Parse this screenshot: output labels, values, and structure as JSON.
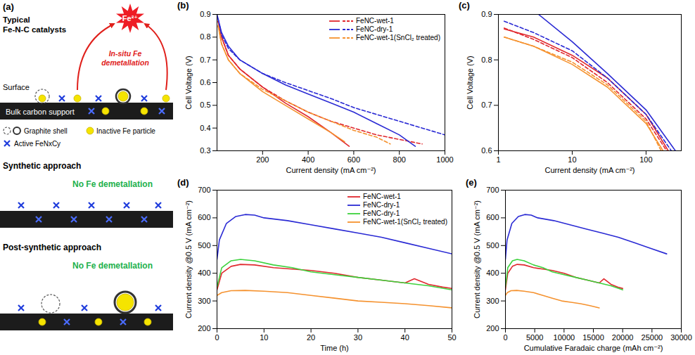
{
  "diagram": {
    "label": "(a)",
    "sections": [
      {
        "title": [
          "Typical",
          "Fe-N-C catalysts"
        ],
        "ion": "Fe²⁺",
        "arrow_label": "In-situ Fe demetallation",
        "surface_label": "Surface",
        "support_label": "Bulk carbon support",
        "key": [
          "Graphite shell",
          "Inactive Fe particle",
          "Active FeNxCy"
        ]
      },
      {
        "title": [
          "Synthetic approach"
        ],
        "note": "No Fe demetallation"
      },
      {
        "title": [
          "Post-synthetic approach"
        ],
        "note": "No Fe demetallation"
      }
    ]
  },
  "chart_data": [
    {
      "type": "line",
      "title": "(b)",
      "x_label": "Current density (mA cm⁻²)",
      "y_label": "Cell Voltage (V)",
      "xlim": [
        0,
        1000
      ],
      "xticks": [
        200,
        400,
        600,
        800,
        1000
      ],
      "ylim": [
        0.3,
        0.9
      ],
      "yticks": [
        0.3,
        0.4,
        0.5,
        0.6,
        0.7,
        0.8,
        0.9
      ],
      "grid": false,
      "legend": "top-right",
      "series": [
        {
          "name": "FeNC-wet-1",
          "color": "#e0282e",
          "line_style": "solid",
          "x": [
            5,
            20,
            50,
            100,
            200,
            300,
            400,
            500,
            580
          ],
          "values": [
            0.87,
            0.8,
            0.72,
            0.66,
            0.58,
            0.51,
            0.45,
            0.38,
            0.32
          ]
        },
        {
          "name": "FeNC-wet-1",
          "color": "#e0282e",
          "line_style": "dashed",
          "x": [
            5,
            20,
            50,
            100,
            200,
            300,
            400,
            500,
            600,
            700,
            800,
            900
          ],
          "values": [
            0.87,
            0.8,
            0.72,
            0.66,
            0.58,
            0.52,
            0.47,
            0.43,
            0.4,
            0.37,
            0.35,
            0.33
          ]
        },
        {
          "name": "FeNC-dry-1",
          "color": "#2a2ad4",
          "line_style": "solid",
          "x": [
            0,
            20,
            50,
            100,
            200,
            300,
            400,
            500,
            600,
            700,
            800,
            870
          ],
          "values": [
            0.9,
            0.82,
            0.76,
            0.7,
            0.64,
            0.59,
            0.55,
            0.51,
            0.47,
            0.42,
            0.37,
            0.32
          ]
        },
        {
          "name": "FeNC-dry-1",
          "color": "#2a2ad4",
          "line_style": "dashed",
          "x": [
            5,
            20,
            50,
            100,
            200,
            300,
            400,
            500,
            600,
            700,
            800,
            900,
            1000
          ],
          "values": [
            0.88,
            0.81,
            0.75,
            0.7,
            0.64,
            0.6,
            0.565,
            0.53,
            0.49,
            0.46,
            0.43,
            0.4,
            0.37
          ]
        },
        {
          "name": "FeNC-wet-1(SnCl₂ treated)",
          "color": "#f5922f",
          "line_style": "solid",
          "x": [
            5,
            20,
            50,
            100,
            200,
            300,
            400,
            500,
            560
          ],
          "values": [
            0.85,
            0.77,
            0.7,
            0.64,
            0.56,
            0.5,
            0.44,
            0.38,
            0.34
          ]
        },
        {
          "name": "FeNC-wet-1(SnCl₂ treated)",
          "color": "#f5922f",
          "line_style": "dashed",
          "x": [
            5,
            20,
            50,
            100,
            200,
            300,
            400,
            500,
            600,
            700,
            760
          ],
          "values": [
            0.85,
            0.77,
            0.7,
            0.64,
            0.57,
            0.52,
            0.47,
            0.43,
            0.39,
            0.36,
            0.33
          ]
        }
      ]
    },
    {
      "type": "line",
      "title": "(c)",
      "x_label": "Current density (mA cm⁻²)",
      "y_label": "Cell Voltage (V)",
      "log": "x",
      "xlim": [
        1,
        300
      ],
      "xticks": [
        1,
        10,
        100
      ],
      "ylim": [
        0.6,
        0.9
      ],
      "yticks": [
        0.6,
        0.7,
        0.8,
        0.9
      ],
      "grid": false,
      "series": [
        {
          "name": "FeNC-wet-1",
          "color": "#e0282e",
          "line_style": "solid",
          "x": [
            1.2,
            3,
            10,
            30,
            100,
            200
          ],
          "values": [
            0.868,
            0.85,
            0.81,
            0.76,
            0.68,
            0.6
          ]
        },
        {
          "name": "FeNC-wet-1",
          "color": "#e0282e",
          "line_style": "dashed",
          "x": [
            1.2,
            3,
            10,
            30,
            100,
            190
          ],
          "values": [
            0.87,
            0.845,
            0.805,
            0.75,
            0.67,
            0.6
          ]
        },
        {
          "name": "FeNC-dry-1",
          "color": "#2a2ad4",
          "line_style": "solid",
          "x": [
            3.5,
            10,
            30,
            100,
            250
          ],
          "values": [
            0.9,
            0.84,
            0.77,
            0.69,
            0.6
          ]
        },
        {
          "name": "FeNC-dry-1",
          "color": "#2a2ad4",
          "line_style": "dashed",
          "x": [
            1.2,
            3,
            10,
            30,
            100,
            220
          ],
          "values": [
            0.885,
            0.86,
            0.82,
            0.76,
            0.68,
            0.6
          ]
        },
        {
          "name": "FeNC-wet-1(SnCl₂ treated)",
          "color": "#f5922f",
          "line_style": "solid",
          "x": [
            1.2,
            3,
            10,
            30,
            100,
            170
          ],
          "values": [
            0.85,
            0.83,
            0.79,
            0.74,
            0.66,
            0.6
          ]
        },
        {
          "name": "FeNC-wet-1(SnCl₂ treated)",
          "color": "#f5922f",
          "line_style": "dashed",
          "x": [
            1.2,
            3,
            10,
            30,
            100,
            160
          ],
          "values": [
            0.85,
            0.83,
            0.795,
            0.745,
            0.665,
            0.6
          ]
        }
      ]
    },
    {
      "type": "line",
      "title": "(d)",
      "x_label": "Time (h)",
      "y_label": "Current density @0.5 V (mA cm⁻²)",
      "xlim": [
        0,
        50
      ],
      "xticks": [
        0,
        10,
        20,
        30,
        40,
        50
      ],
      "ylim": [
        200,
        700
      ],
      "yticks": [
        200,
        300,
        400,
        500,
        600,
        700
      ],
      "grid": false,
      "legend": "top-right",
      "series": [
        {
          "name": "FeNC-wet-1",
          "color": "#e0282e",
          "line_style": "solid",
          "x": [
            0,
            1,
            3,
            5,
            8,
            12,
            16,
            20,
            25,
            30,
            35,
            40,
            42,
            45,
            48,
            50
          ],
          "values": [
            340,
            400,
            425,
            432,
            430,
            420,
            415,
            410,
            400,
            385,
            375,
            365,
            380,
            360,
            350,
            345
          ]
        },
        {
          "name": "FeNC-dry-1",
          "color": "#2a2ad4",
          "line_style": "solid",
          "x": [
            0,
            0.5,
            2,
            4,
            6,
            8,
            10,
            15,
            20,
            25,
            30,
            35,
            40,
            45,
            50
          ],
          "values": [
            450,
            520,
            580,
            605,
            612,
            610,
            600,
            590,
            575,
            560,
            545,
            530,
            510,
            490,
            470
          ]
        },
        {
          "name": "FeNC-dry-1",
          "color": "#3dd23d",
          "line_style": "solid",
          "x": [
            0,
            1,
            3,
            5,
            8,
            12,
            16,
            20,
            25,
            30,
            35,
            40,
            45,
            50
          ],
          "values": [
            350,
            420,
            445,
            450,
            445,
            430,
            420,
            405,
            395,
            385,
            375,
            365,
            355,
            340
          ]
        },
        {
          "name": "FeNC-wet-1(SnCl₂ treated)",
          "color": "#f5922f",
          "line_style": "solid",
          "x": [
            0,
            1,
            3,
            6,
            10,
            15,
            20,
            25,
            30,
            35,
            40,
            45,
            50
          ],
          "values": [
            320,
            330,
            337,
            338,
            335,
            330,
            320,
            310,
            300,
            295,
            290,
            283,
            275
          ]
        }
      ]
    },
    {
      "type": "line",
      "title": "(e)",
      "x_label": "Cumulative Faradaic charge (mAh cm⁻²)",
      "y_label": "Current density @0.5 V (mA cm⁻²)",
      "xlim": [
        0,
        30000
      ],
      "xticks": [
        0,
        5000,
        10000,
        15000,
        20000,
        25000,
        30000
      ],
      "ylim": [
        200,
        700
      ],
      "yticks": [
        200,
        300,
        400,
        500,
        600,
        700
      ],
      "grid": false,
      "series": [
        {
          "name": "FeNC-wet-1",
          "color": "#e0282e",
          "line_style": "solid",
          "x": [
            0,
            400,
            1200,
            2000,
            3200,
            4800,
            6400,
            8000,
            10000,
            12000,
            14000,
            16000,
            16800,
            18000,
            19200,
            20000
          ],
          "values": [
            340,
            400,
            425,
            432,
            430,
            420,
            415,
            410,
            400,
            385,
            375,
            365,
            380,
            360,
            350,
            345
          ]
        },
        {
          "name": "FeNC-dry-1",
          "color": "#2a2ad4",
          "line_style": "solid",
          "x": [
            0,
            275,
            1100,
            2200,
            3300,
            4400,
            5500,
            8250,
            11000,
            13750,
            16500,
            19250,
            22000,
            24750,
            27500
          ],
          "values": [
            450,
            520,
            580,
            605,
            612,
            610,
            600,
            590,
            575,
            560,
            545,
            530,
            510,
            490,
            470
          ]
        },
        {
          "name": "FeNC-dry-1",
          "color": "#3dd23d",
          "line_style": "solid",
          "x": [
            0,
            400,
            1200,
            2000,
            3200,
            4800,
            6400,
            8000,
            10000,
            12000,
            14000,
            16000,
            18000,
            20000
          ],
          "values": [
            350,
            420,
            445,
            450,
            445,
            430,
            420,
            405,
            395,
            385,
            375,
            365,
            355,
            340
          ]
        },
        {
          "name": "FeNC-wet-1(SnCl₂ treated)",
          "color": "#f5922f",
          "line_style": "solid",
          "x": [
            0,
            320,
            960,
            1920,
            3200,
            4800,
            6400,
            8000,
            9600,
            11200,
            12800,
            14400,
            16000
          ],
          "values": [
            320,
            330,
            337,
            338,
            335,
            330,
            320,
            310,
            300,
            295,
            290,
            283,
            275
          ]
        }
      ]
    }
  ]
}
